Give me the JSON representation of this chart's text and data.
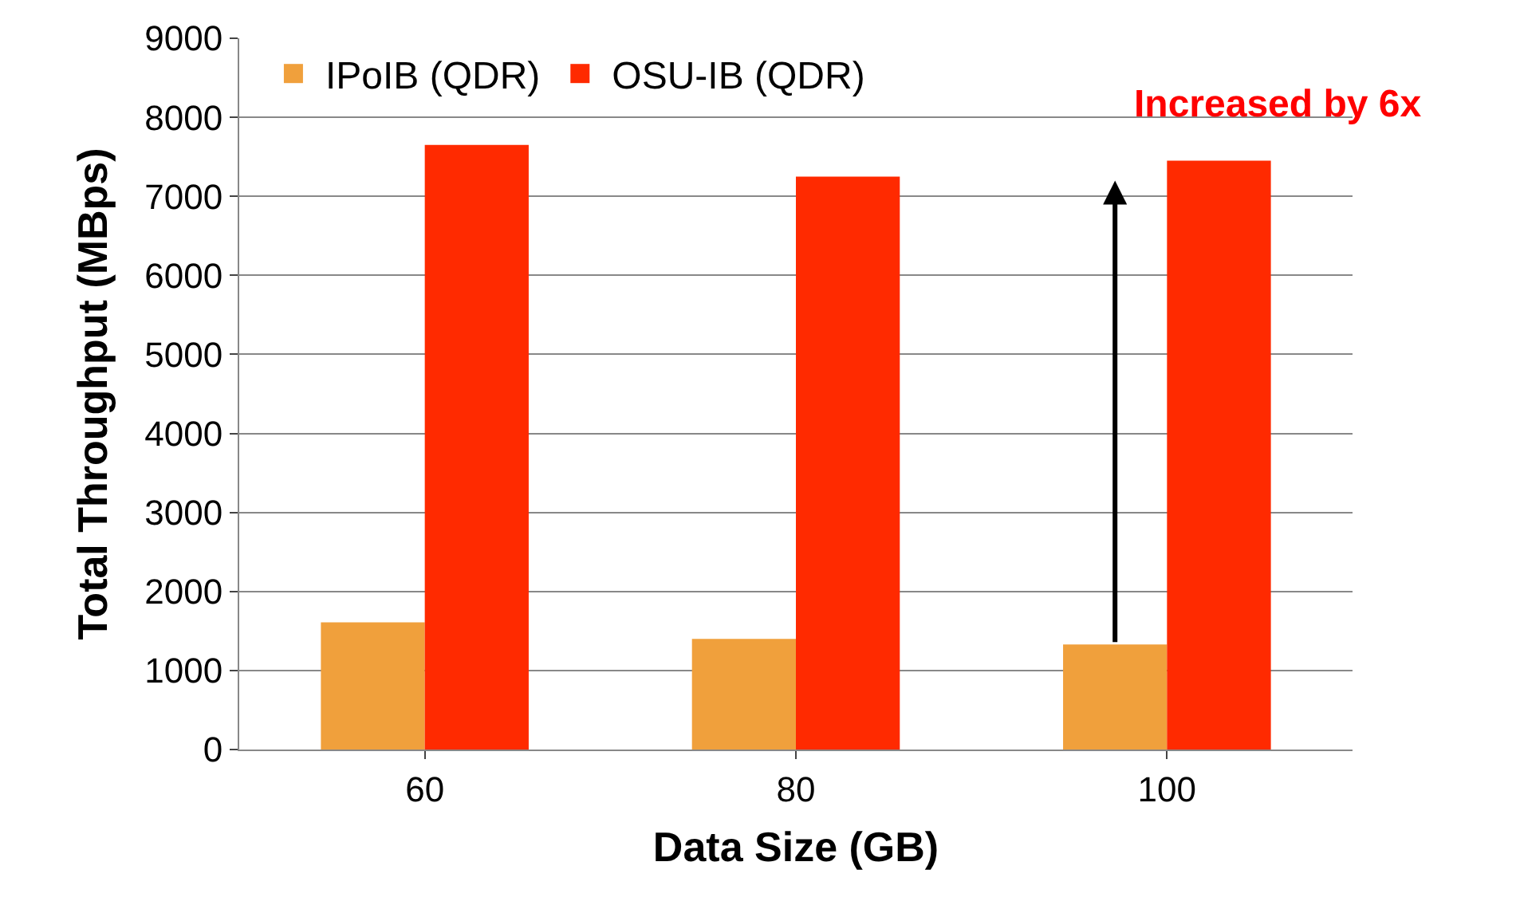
{
  "chart_data": {
    "type": "bar",
    "xlabel": "Data Size (GB)",
    "ylabel": "Total Throughput (MBps)",
    "categories": [
      "60",
      "80",
      "100"
    ],
    "series": [
      {
        "name": "IPoIB (QDR)",
        "color": "#f0a03c",
        "values": [
          1610,
          1400,
          1330
        ]
      },
      {
        "name": "OSU-IB (QDR)",
        "color": "#ff2a00",
        "values": [
          7650,
          7250,
          7450
        ]
      }
    ],
    "ylim": [
      0,
      9000
    ],
    "yticks": [
      0,
      1000,
      2000,
      3000,
      4000,
      5000,
      6000,
      7000,
      8000,
      9000
    ],
    "grid": "y",
    "legend": "top left",
    "annotations": [
      {
        "text": "Increased by 6x",
        "x": "100",
        "y": 7200
      }
    ]
  }
}
